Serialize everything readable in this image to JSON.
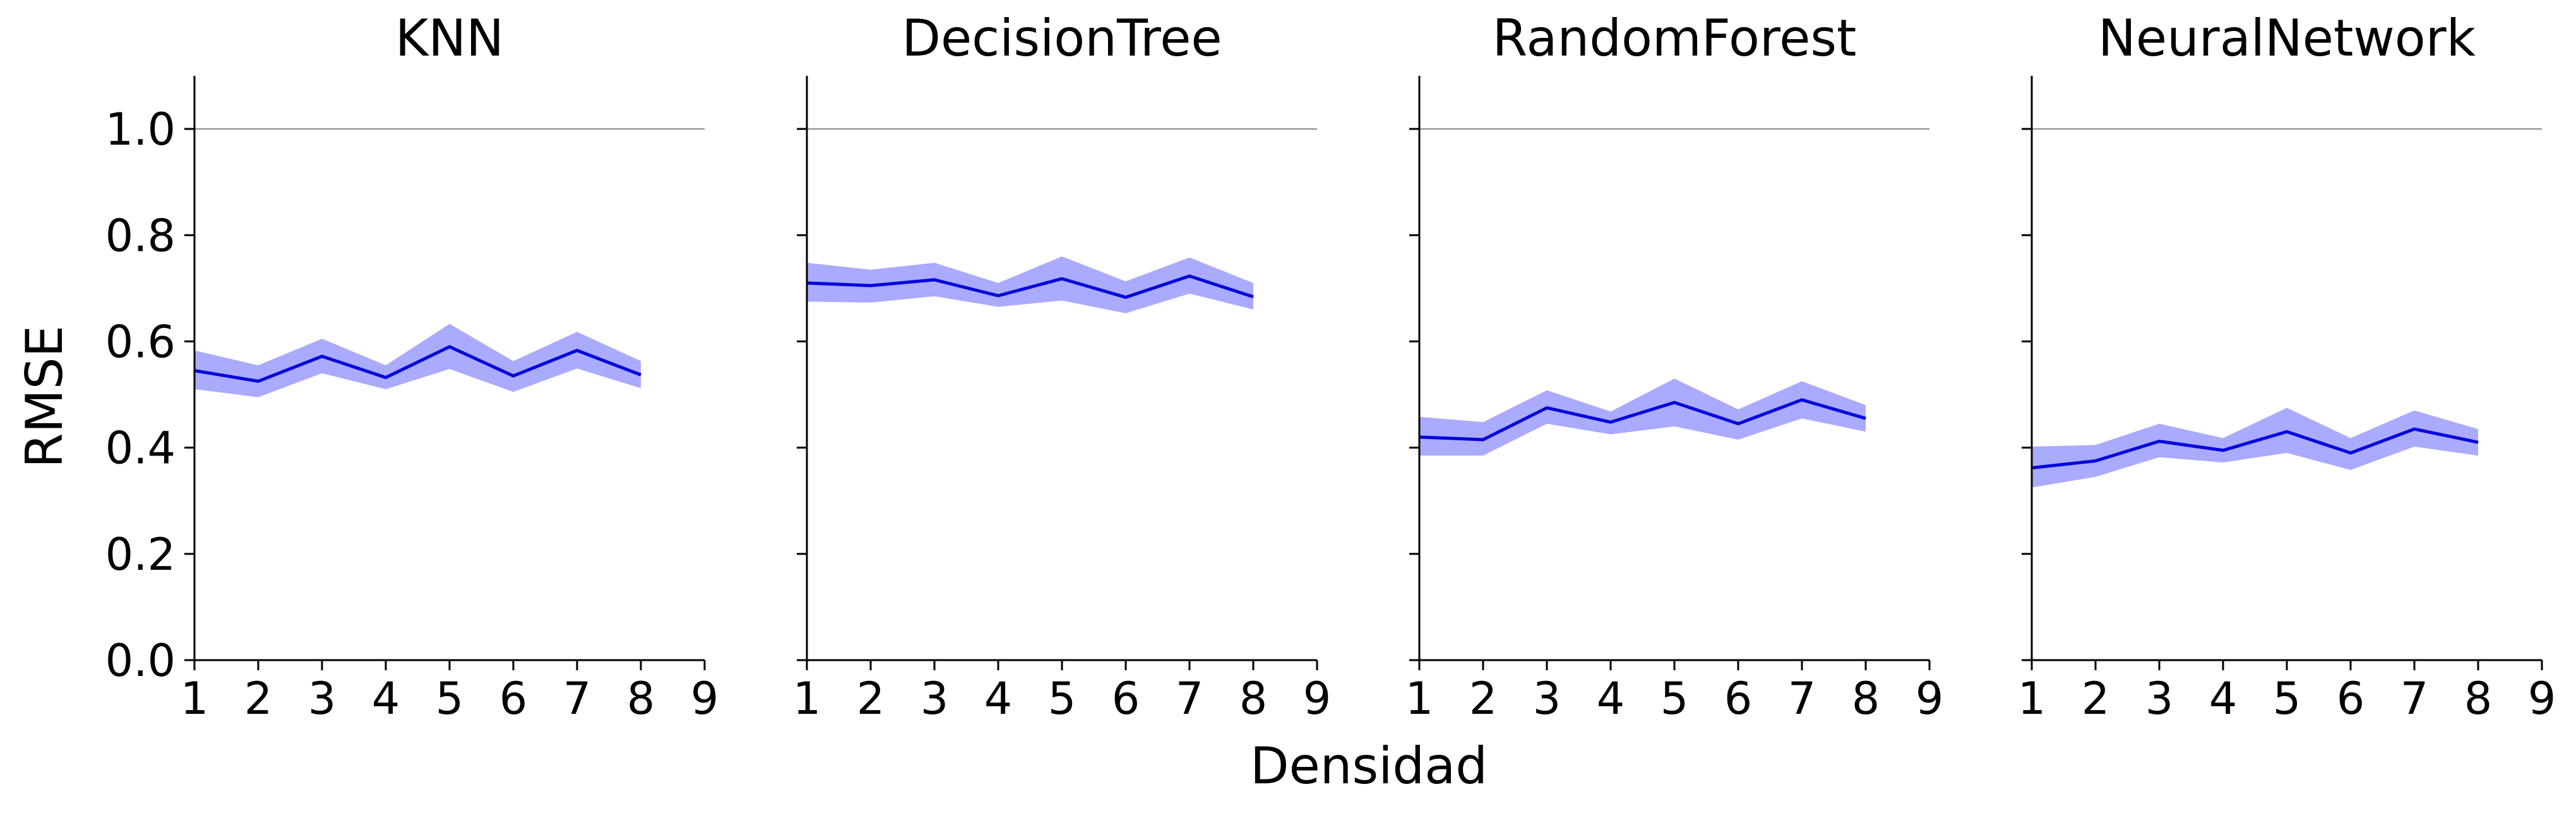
{
  "figure": {
    "ylabel": "RMSE",
    "xlabel": "Densidad"
  },
  "colors": {
    "line": "#0000dd",
    "band": "#aaaaff",
    "reference": "#999999",
    "axis": "#000000"
  },
  "chart_data": [
    {
      "type": "line",
      "title": "KNN",
      "x": [
        1,
        2,
        3,
        4,
        5,
        6,
        7,
        8
      ],
      "values": [
        0.545,
        0.525,
        0.572,
        0.532,
        0.59,
        0.535,
        0.583,
        0.537
      ],
      "lower": [
        0.51,
        0.495,
        0.54,
        0.51,
        0.548,
        0.505,
        0.549,
        0.512
      ],
      "upper": [
        0.583,
        0.555,
        0.605,
        0.555,
        0.633,
        0.563,
        0.618,
        0.563
      ],
      "reference_line": 1.0,
      "xlim": [
        1,
        9
      ],
      "ylim": [
        0,
        1.1
      ],
      "xticks": [
        "1",
        "2",
        "3",
        "4",
        "5",
        "6",
        "7",
        "8",
        "9"
      ],
      "yticks": [
        "0.0",
        "0.2",
        "0.4",
        "0.6",
        "0.8",
        "1.0"
      ],
      "ytick_labels_shown": true
    },
    {
      "type": "line",
      "title": "DecisionTree",
      "x": [
        1,
        2,
        3,
        4,
        5,
        6,
        7,
        8
      ],
      "values": [
        0.71,
        0.705,
        0.716,
        0.686,
        0.718,
        0.683,
        0.723,
        0.684
      ],
      "lower": [
        0.675,
        0.673,
        0.685,
        0.665,
        0.677,
        0.653,
        0.69,
        0.66
      ],
      "upper": [
        0.748,
        0.735,
        0.748,
        0.71,
        0.76,
        0.713,
        0.758,
        0.71
      ],
      "reference_line": 1.0,
      "xlim": [
        1,
        9
      ],
      "ylim": [
        0,
        1.1
      ],
      "xticks": [
        "1",
        "2",
        "3",
        "4",
        "5",
        "6",
        "7",
        "8",
        "9"
      ],
      "yticks": [
        "0.0",
        "0.2",
        "0.4",
        "0.6",
        "0.8",
        "1.0"
      ],
      "ytick_labels_shown": false
    },
    {
      "type": "line",
      "title": "RandomForest",
      "x": [
        1,
        2,
        3,
        4,
        5,
        6,
        7,
        8
      ],
      "values": [
        0.42,
        0.415,
        0.475,
        0.448,
        0.485,
        0.445,
        0.49,
        0.455
      ],
      "lower": [
        0.385,
        0.385,
        0.445,
        0.425,
        0.44,
        0.415,
        0.455,
        0.43
      ],
      "upper": [
        0.458,
        0.448,
        0.508,
        0.468,
        0.53,
        0.472,
        0.525,
        0.48
      ],
      "reference_line": 1.0,
      "xlim": [
        1,
        9
      ],
      "ylim": [
        0,
        1.1
      ],
      "xticks": [
        "1",
        "2",
        "3",
        "4",
        "5",
        "6",
        "7",
        "8",
        "9"
      ],
      "yticks": [
        "0.0",
        "0.2",
        "0.4",
        "0.6",
        "0.8",
        "1.0"
      ],
      "ytick_labels_shown": false
    },
    {
      "type": "line",
      "title": "NeuralNetwork",
      "x": [
        1,
        2,
        3,
        4,
        5,
        6,
        7,
        8
      ],
      "values": [
        0.362,
        0.375,
        0.412,
        0.395,
        0.43,
        0.39,
        0.435,
        0.41
      ],
      "lower": [
        0.325,
        0.345,
        0.382,
        0.372,
        0.39,
        0.358,
        0.402,
        0.385
      ],
      "upper": [
        0.402,
        0.405,
        0.445,
        0.418,
        0.475,
        0.418,
        0.47,
        0.435
      ],
      "reference_line": 1.0,
      "xlim": [
        1,
        9
      ],
      "ylim": [
        0,
        1.1
      ],
      "xticks": [
        "1",
        "2",
        "3",
        "4",
        "5",
        "6",
        "7",
        "8",
        "9"
      ],
      "yticks": [
        "0.0",
        "0.2",
        "0.4",
        "0.6",
        "0.8",
        "1.0"
      ],
      "ytick_labels_shown": false
    }
  ]
}
